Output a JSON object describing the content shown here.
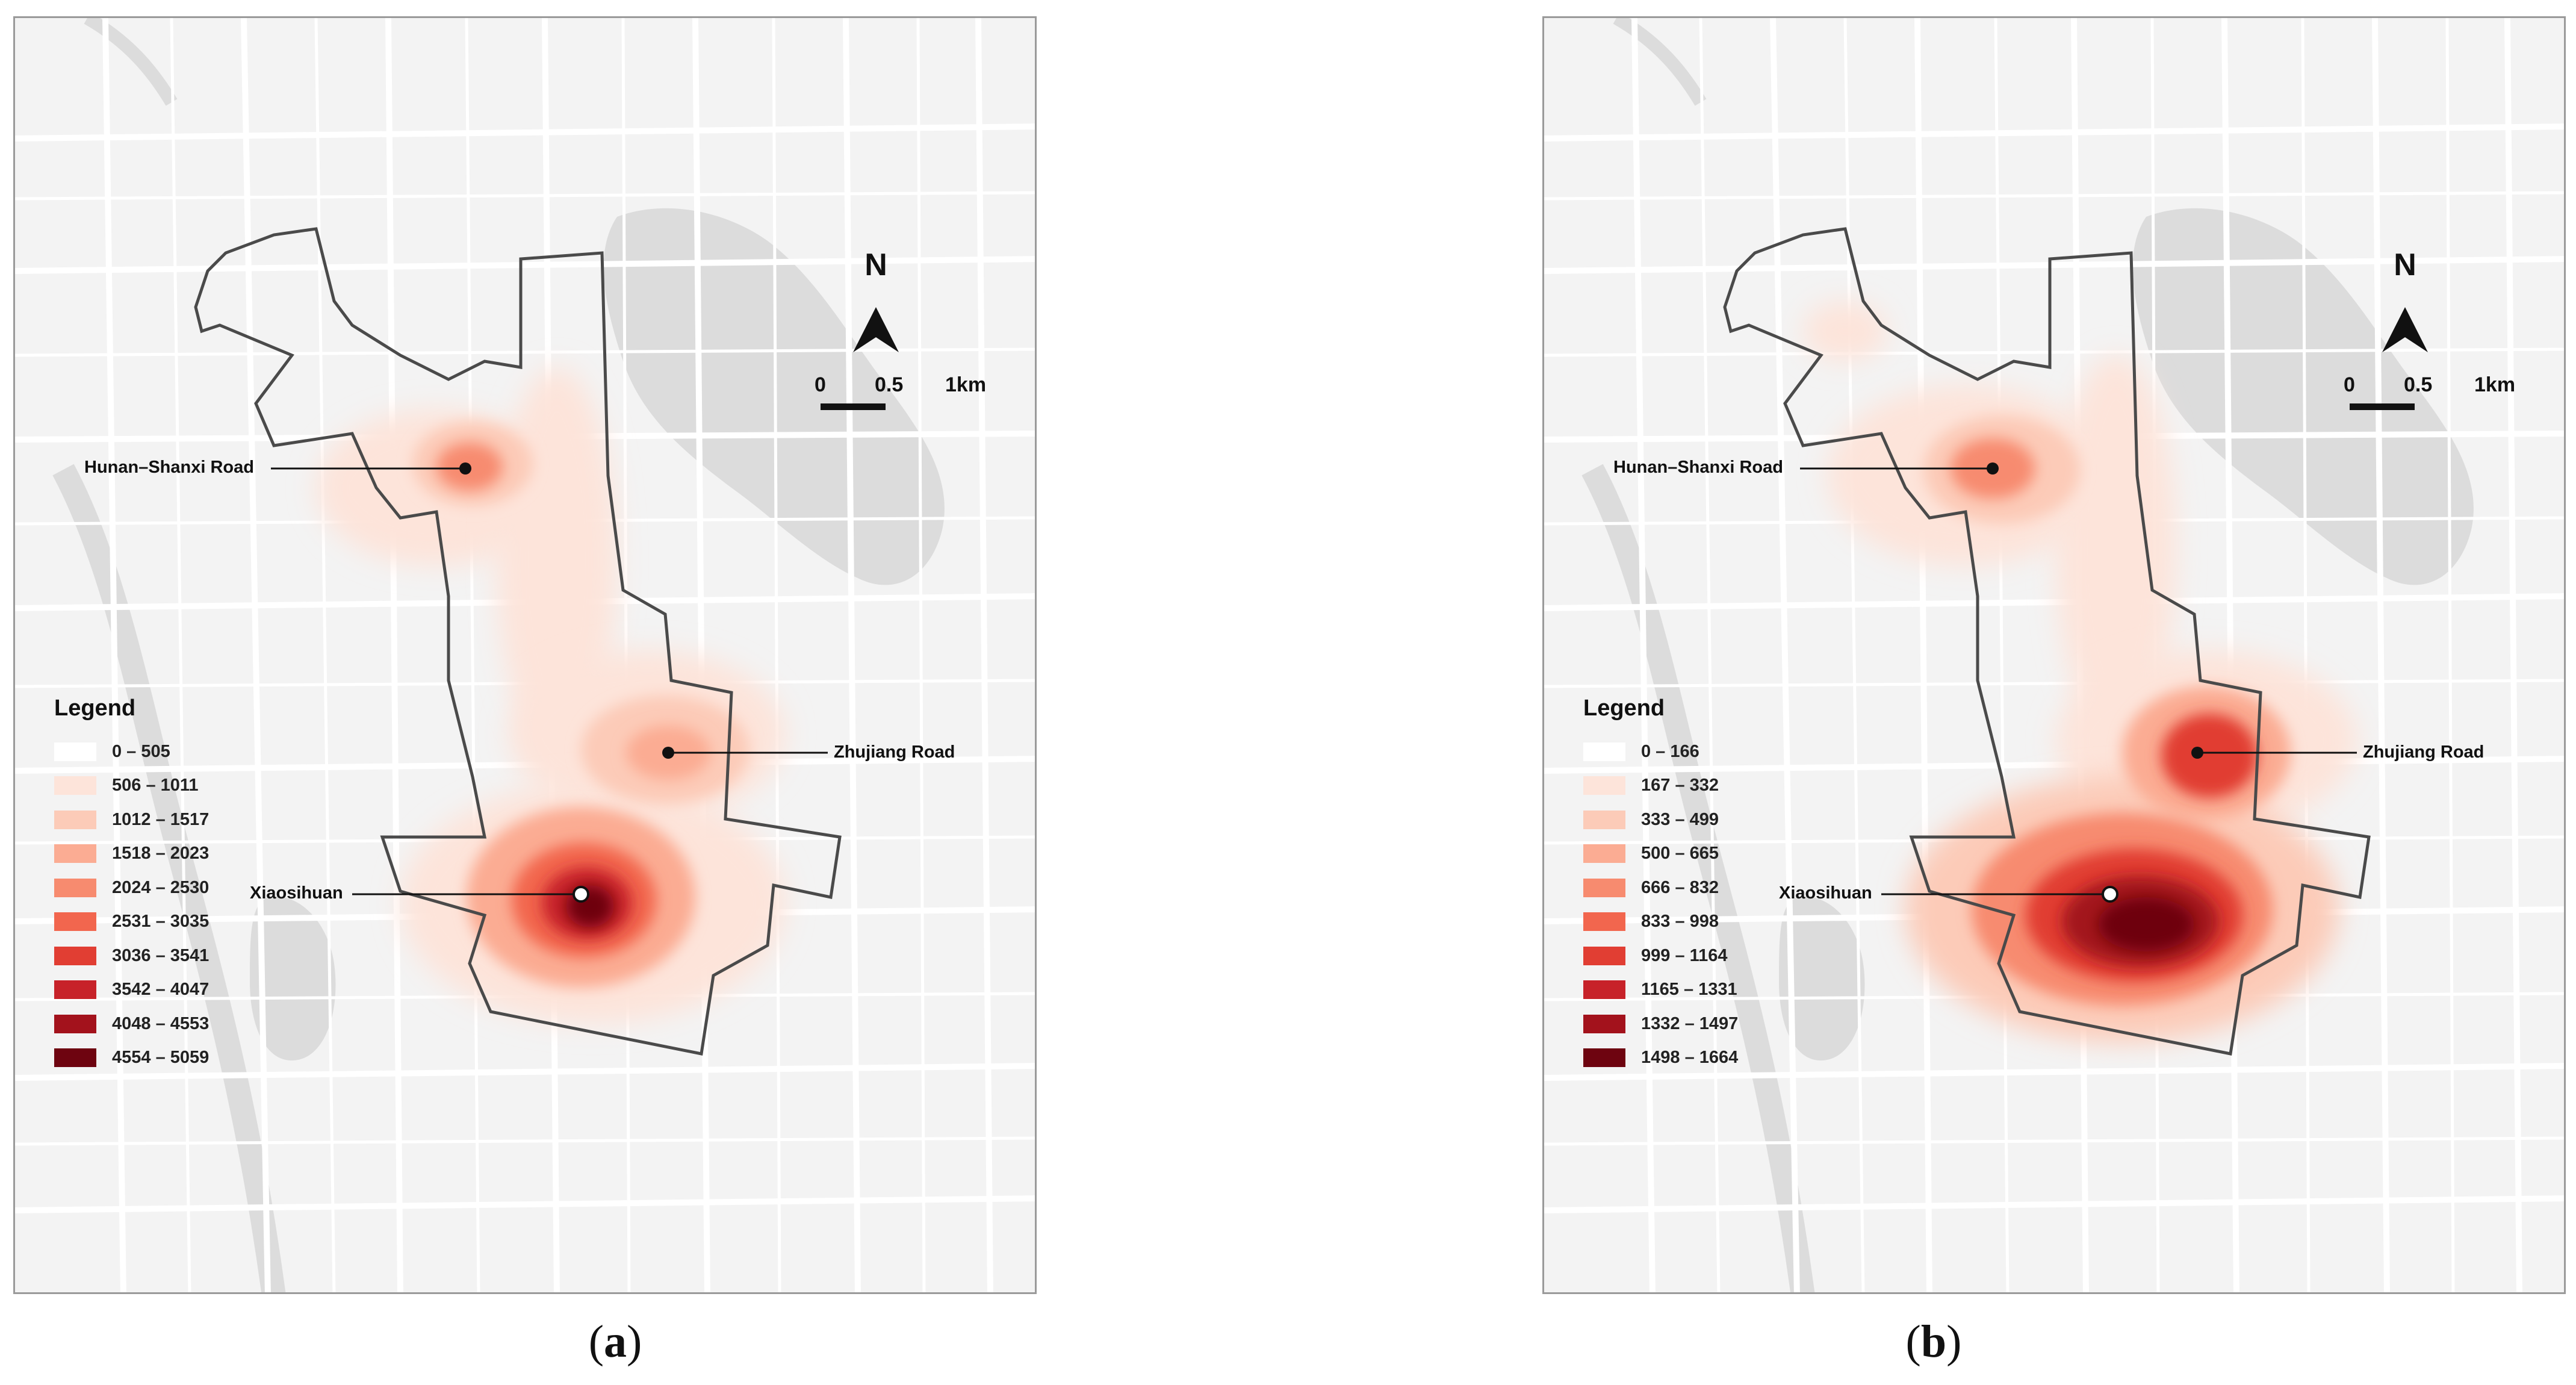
{
  "panels": [
    {
      "id": "a",
      "caption_letter": "a",
      "north": "N",
      "scale": {
        "zero": "0",
        "half": "0.5",
        "full": "1km"
      },
      "legend": {
        "title": "Legend",
        "classes": [
          {
            "label": "0 – 505",
            "color": "#ffffff"
          },
          {
            "label": "506 – 1011",
            "color": "#fde4da"
          },
          {
            "label": "1012 – 1517",
            "color": "#fccbb8"
          },
          {
            "label": "1518 – 2023",
            "color": "#fbac93"
          },
          {
            "label": "2024 – 2530",
            "color": "#f78b6f"
          },
          {
            "label": "2531 – 3035",
            "color": "#f2664e"
          },
          {
            "label": "3036 – 3541",
            "color": "#e13e33"
          },
          {
            "label": "3542 – 4047",
            "color": "#c72229"
          },
          {
            "label": "4048 – 4553",
            "color": "#a3121c"
          },
          {
            "label": "4554 – 5059",
            "color": "#6e0410"
          }
        ]
      },
      "places": [
        {
          "name": "Hunan–Shanxi Road"
        },
        {
          "name": "Zhujiang Road"
        },
        {
          "name": "Xiaosihuan"
        }
      ]
    },
    {
      "id": "b",
      "caption_letter": "b",
      "north": "N",
      "scale": {
        "zero": "0",
        "half": "0.5",
        "full": "1km"
      },
      "legend": {
        "title": "Legend",
        "classes": [
          {
            "label": "0 – 166",
            "color": "#ffffff"
          },
          {
            "label": "167 – 332",
            "color": "#fde4da"
          },
          {
            "label": "333 – 499",
            "color": "#fccbb8"
          },
          {
            "label": "500 – 665",
            "color": "#fbac93"
          },
          {
            "label": "666 – 832",
            "color": "#f78b6f"
          },
          {
            "label": "833 – 998",
            "color": "#f2664e"
          },
          {
            "label": "999 – 1164",
            "color": "#e13e33"
          },
          {
            "label": "1165 – 1331",
            "color": "#c72229"
          },
          {
            "label": "1332 – 1497",
            "color": "#a3121c"
          },
          {
            "label": "1498 – 1664",
            "color": "#6e0410"
          }
        ]
      },
      "places": [
        {
          "name": "Hunan–Shanxi Road"
        },
        {
          "name": "Zhujiang Road"
        },
        {
          "name": "Xiaosihuan"
        }
      ]
    }
  ],
  "colors": {
    "background": "#f3f3f3",
    "roads": "#ffffff",
    "water_park": "#dcdcdc",
    "boundary": "#4a4a4a"
  }
}
